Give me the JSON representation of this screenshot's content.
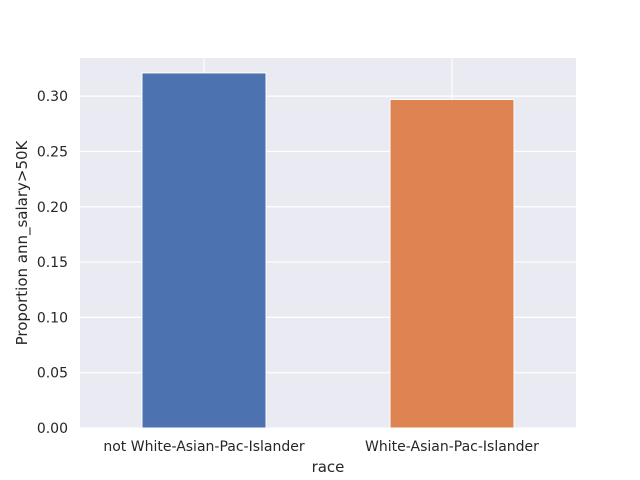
{
  "chart_data": {
    "type": "bar",
    "categories": [
      "not White-Asian-Pac-Islander",
      "White-Asian-Pac-Islander"
    ],
    "values": [
      0.321,
      0.297
    ],
    "colors": [
      "#4c72b0",
      "#dd8452"
    ],
    "xlabel": "race",
    "ylabel": "Proportion ann_salary>50K",
    "ylim": [
      0,
      0.3345
    ],
    "yticks": [
      0.0,
      0.05,
      0.1,
      0.15,
      0.2,
      0.25,
      0.3
    ],
    "ytick_labels": [
      "0.00",
      "0.05",
      "0.10",
      "0.15",
      "0.20",
      "0.25",
      "0.30"
    ],
    "grid": true,
    "background": "#eaeaf2"
  }
}
